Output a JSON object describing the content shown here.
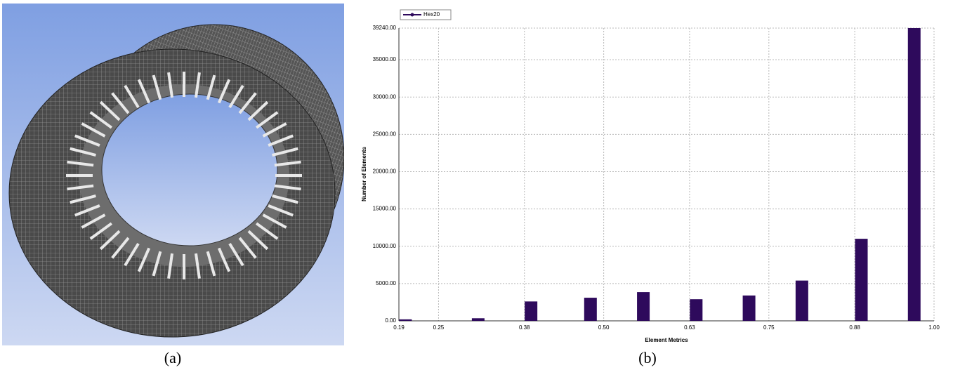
{
  "figure": {
    "captions": [
      "(a)",
      "(b)"
    ]
  },
  "chart_data": {
    "type": "bar",
    "x_label": "Element Metrics",
    "y_label": "Number of Elements",
    "x": [
      0.2,
      0.31,
      0.39,
      0.48,
      0.56,
      0.64,
      0.72,
      0.8,
      0.89,
      0.97
    ],
    "series": [
      {
        "name": "Hex20",
        "color": "#2e0a5c",
        "values": [
          200,
          350,
          2600,
          3100,
          3850,
          2900,
          3400,
          5400,
          11000,
          39240
        ]
      }
    ],
    "xlim": [
      0.19,
      1.0
    ],
    "xticks": [
      {
        "value": 0.19,
        "label": "0.19"
      },
      {
        "value": 0.25,
        "label": "0.25"
      },
      {
        "value": 0.38,
        "label": "0.38"
      },
      {
        "value": 0.5,
        "label": "0.50"
      },
      {
        "value": 0.63,
        "label": "0.63"
      },
      {
        "value": 0.75,
        "label": "0.75"
      },
      {
        "value": 0.88,
        "label": "0.88"
      },
      {
        "value": 1.0,
        "label": "1.00"
      }
    ],
    "ylim": [
      0,
      39240
    ],
    "yticks": [
      {
        "value": 0,
        "label": "0.00"
      },
      {
        "value": 5000,
        "label": "5000.00"
      },
      {
        "value": 10000,
        "label": "10000.00"
      },
      {
        "value": 15000,
        "label": "15000.00"
      },
      {
        "value": 20000,
        "label": "20000.00"
      },
      {
        "value": 25000,
        "label": "25000.00"
      },
      {
        "value": 30000,
        "label": "30000.00"
      },
      {
        "value": 35000,
        "label": "35000.00"
      },
      {
        "value": 39240,
        "label": "39240.00"
      }
    ],
    "grid": true,
    "legend": "top-left"
  }
}
